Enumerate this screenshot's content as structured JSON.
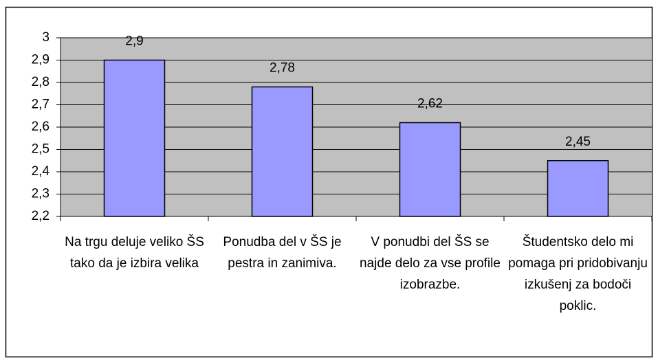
{
  "chart_data": {
    "type": "bar",
    "categories": [
      "Na trgu deluje veliko ŠS tako da je izbira velika",
      "Ponudba del v ŠS je pestra in zanimiva.",
      "V ponudbi del ŠS se najde delo za vse profile izobrazbe.",
      "Študentsko delo mi pomaga pri pridobivanju izkušenj za bodoči poklic."
    ],
    "values": [
      2.9,
      2.78,
      2.62,
      2.45
    ],
    "value_labels": [
      "2,9",
      "2,78",
      "2,62",
      "2,45"
    ],
    "color": "#9999ff",
    "ylim": [
      2.2,
      3
    ],
    "yticks": [
      {
        "value": 2.2,
        "label": "2,2"
      },
      {
        "value": 2.3,
        "label": "2,3"
      },
      {
        "value": 2.4,
        "label": "2,4"
      },
      {
        "value": 2.5,
        "label": "2,5"
      },
      {
        "value": 2.6,
        "label": "2,6"
      },
      {
        "value": 2.7,
        "label": "2,7"
      },
      {
        "value": 2.8,
        "label": "2,8"
      },
      {
        "value": 2.9,
        "label": "2,9"
      },
      3
    ],
    "grid": true
  }
}
